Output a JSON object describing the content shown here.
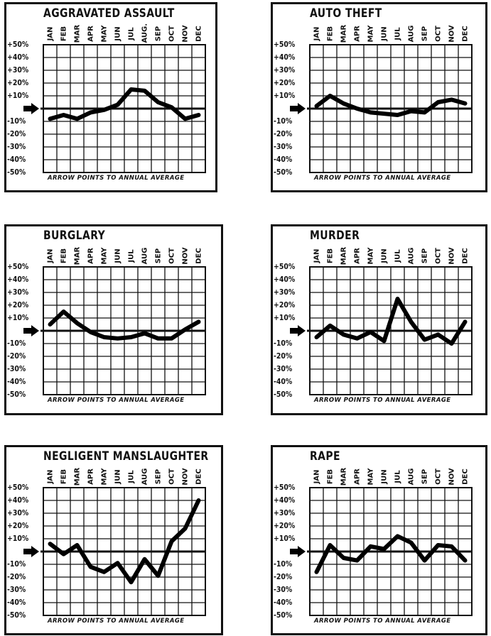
{
  "note": "ARROW POINTS TO ANNUAL AVERAGE",
  "chart_data": [
    {
      "type": "line",
      "title": "AGGRAVATED ASSAULT",
      "categories": [
        "JAN",
        "FEB",
        "MAR",
        "APR",
        "MAY",
        "JUN",
        "JUL",
        "AUG.",
        "SEP",
        "OCT",
        "NOV",
        "DEC"
      ],
      "yticks": [
        "+50%",
        "+40%",
        "+30%",
        "+20%",
        "+10%",
        "",
        "-10%",
        "-20%",
        "-30%",
        "-40%",
        "-50%"
      ],
      "ylim": [
        -50,
        50
      ],
      "values": [
        -8,
        -5,
        -8,
        -3,
        -1,
        3,
        15,
        14,
        5,
        1,
        -8,
        -5
      ]
    },
    {
      "type": "line",
      "title": "AUTO THEFT",
      "categories": [
        "JAN",
        "FEB",
        "MAR",
        "APR",
        "MAY",
        "JUN",
        "JUL",
        "AUG",
        "SEP",
        "OCT",
        "NOV",
        "DEC"
      ],
      "yticks": [
        "+50%",
        "+40%",
        "+30%",
        "+20%",
        "+10%",
        "",
        "-10%",
        "-20%",
        "-30%",
        "-40%",
        "-50%"
      ],
      "ylim": [
        -50,
        50
      ],
      "values": [
        2,
        10,
        4,
        0,
        -3,
        -4,
        -5,
        -2,
        -3,
        5,
        7,
        4
      ]
    },
    {
      "type": "line",
      "title": "BURGLARY",
      "categories": [
        "JAN",
        "FEB",
        "MAR",
        "APR",
        "MAY",
        "JUN",
        "JUL",
        "AUG",
        "SEP",
        "OCT",
        "NOV",
        "DEC"
      ],
      "yticks": [
        "+50%",
        "+40%",
        "+30%",
        "+20%",
        "+10%",
        "",
        "-10%",
        "-20%",
        "-30%",
        "-40%",
        "-50%"
      ],
      "ylim": [
        -50,
        50
      ],
      "values": [
        5,
        15,
        6,
        -1,
        -5,
        -6,
        -5,
        -2,
        -6,
        -6,
        1,
        7
      ]
    },
    {
      "type": "line",
      "title": "MURDER",
      "categories": [
        "JAN",
        "FEB",
        "MAR",
        "APR",
        "MAY",
        "JUN",
        "JUL",
        "AUG",
        "SEP",
        "OCT",
        "NOV",
        "DEC"
      ],
      "yticks": [
        "+50%",
        "+40%",
        "+30%",
        "+20%",
        "+10%",
        "",
        "-10%",
        "-20%",
        "-30%",
        "-40%",
        "-50%"
      ],
      "ylim": [
        -50,
        50
      ],
      "values": [
        -5,
        4,
        -3,
        -6,
        -1,
        -8,
        25,
        7,
        -7,
        -3,
        -10,
        7
      ]
    },
    {
      "type": "line",
      "title": "NEGLIGENT MANSLAUGHTER",
      "categories": [
        "JAN",
        "FEB",
        "MAR",
        "APR",
        "MAY",
        "JUN",
        "JUL",
        "AUG",
        "SEP",
        "OCT",
        "NOV",
        "DEC"
      ],
      "yticks": [
        "+50%",
        "+40%",
        "+30%",
        "+20%",
        "+10%",
        "",
        "-10%",
        "-20%",
        "-30%",
        "-40%",
        "-50%"
      ],
      "ylim": [
        -50,
        50
      ],
      "values": [
        6,
        -2,
        5,
        -12,
        -16,
        -9,
        -24,
        -6,
        -19,
        8,
        18,
        40
      ]
    },
    {
      "type": "line",
      "title": "RAPE",
      "categories": [
        "JAN",
        "FEB",
        "MAR",
        "APR",
        "MAY",
        "JUN",
        "JUL",
        "AUG",
        "SEP",
        "OCT",
        "NOV",
        "DEC"
      ],
      "yticks": [
        "+50%",
        "+40%",
        "+30%",
        "+20%",
        "+10%",
        "",
        "-10%",
        "-20%",
        "-30%",
        "-40%",
        "-50%"
      ],
      "ylim": [
        -50,
        50
      ],
      "values": [
        -16,
        5,
        -5,
        -7,
        4,
        2,
        12,
        7,
        -7,
        5,
        4,
        -7
      ]
    }
  ]
}
